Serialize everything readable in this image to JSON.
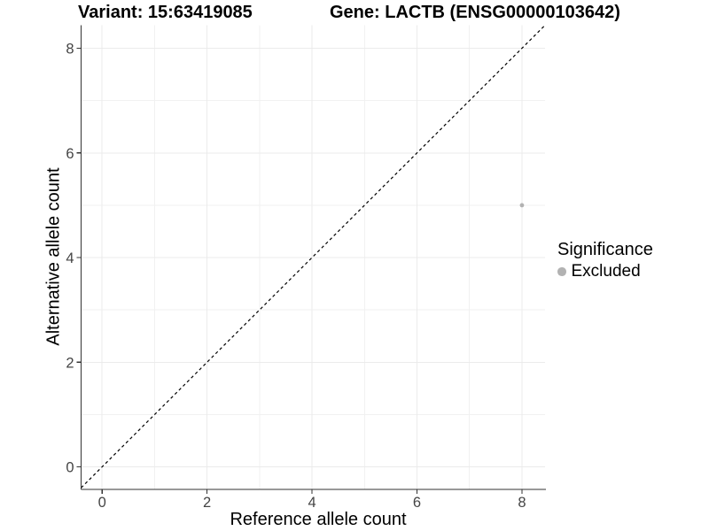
{
  "legend": {
    "title": "Significance",
    "items": [
      {
        "label": "Excluded",
        "color": "#b2b2b2"
      }
    ]
  },
  "colors": {
    "background": "#ffffff",
    "grid_major": "#ebebeb",
    "grid_minor": "#f1f1f1",
    "axis_line": "#333333",
    "tick_mark": "#333333",
    "tick_label": "#444444",
    "title_text": "#000000",
    "identity_line": "#000000",
    "point": "#b2b2b2"
  },
  "chart_data": {
    "type": "scatter",
    "title_left": "Variant: 15:63419085",
    "title_right": "Gene: LACTB (ENSG00000103642)",
    "xlabel": "Reference allele count",
    "ylabel": "Alternative allele count",
    "xlim": [
      -0.4,
      8.44
    ],
    "ylim": [
      -0.43,
      8.44
    ],
    "x_major_ticks": [
      0,
      2,
      4,
      6,
      8
    ],
    "y_major_ticks": [
      0,
      2,
      4,
      6,
      8
    ],
    "x_minor_ticks": [
      1,
      3,
      5,
      7
    ],
    "y_minor_ticks": [
      1,
      3,
      5,
      7
    ],
    "grid": true,
    "legend_position": "right",
    "identity_line": {
      "style": "dashed",
      "slope": 1,
      "intercept": 0
    },
    "series": [
      {
        "name": "Excluded",
        "color": "#b2b2b2",
        "points": [
          {
            "x": 8,
            "y": 5
          }
        ]
      }
    ]
  }
}
